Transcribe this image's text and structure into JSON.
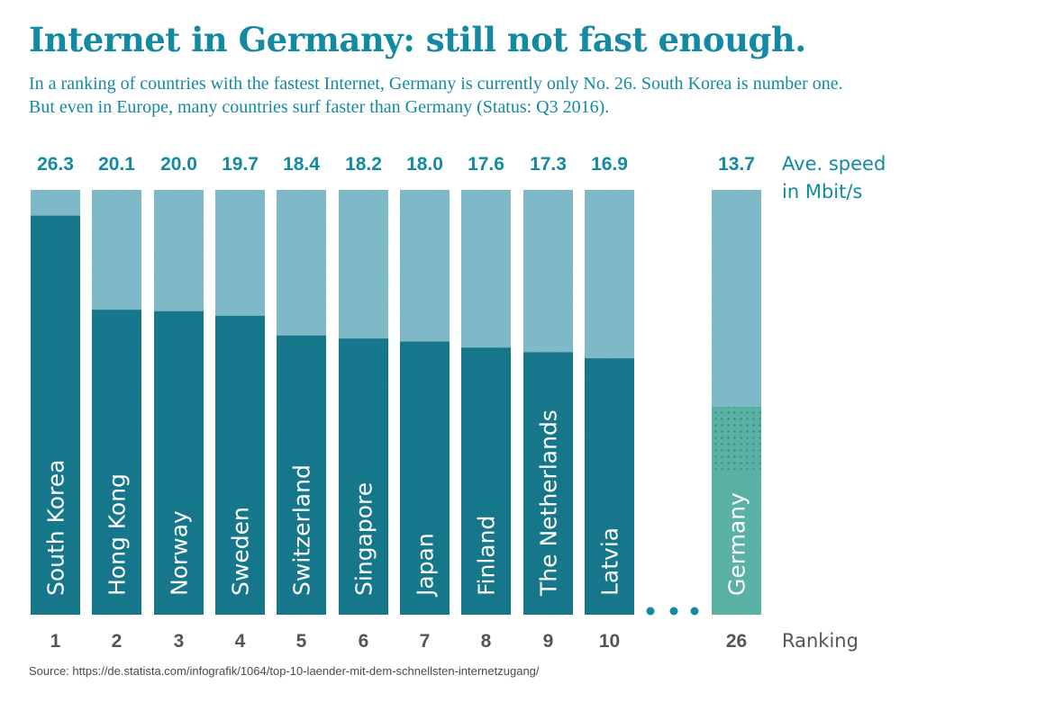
{
  "header": {
    "title": "Internet in Germany: still not fast enough.",
    "subtitle_line1": "In a ranking of countries with the fastest Internet, Germany is currently only No. 26. South Korea is number one.",
    "subtitle_line2": "But even in Europe, many countries surf faster than Germany (Status: Q3 2016)."
  },
  "source": "Source: https://de.statista.com/infografik/1064/top-10-laender-mit-dem-schnellsten-internetzugang/",
  "colors": {
    "accent": "#138aa1",
    "bar_dark": "#1f7d92",
    "bar_light": "#84c1d0",
    "germany_fill": "#5fb9ab",
    "rank_text": "#555555"
  },
  "chart_data": {
    "type": "bar",
    "ylabel_line1": "Ave. speed",
    "ylabel_line2": "in Mbit/s",
    "rank_label": "Ranking",
    "ylim": [
      0,
      28
    ],
    "categories": [
      "South Korea",
      "Hong Kong",
      "Norway",
      "Sweden",
      "Switzerland",
      "Singapore",
      "Japan",
      "Finland",
      "The Netherlands",
      "Latvia",
      "Germany"
    ],
    "values": [
      26.3,
      20.1,
      20.0,
      19.7,
      18.4,
      18.2,
      18.0,
      17.6,
      17.3,
      16.9,
      13.7
    ],
    "value_labels": [
      "26.3",
      "20.1",
      "20.0",
      "19.7",
      "18.4",
      "18.2",
      "18.0",
      "17.6",
      "17.3",
      "16.9",
      "13.7"
    ],
    "ranks": [
      "1",
      "2",
      "3",
      "4",
      "5",
      "6",
      "7",
      "8",
      "9",
      "10",
      "26"
    ],
    "highlight": "Germany",
    "gap_marker": "ellipsis"
  }
}
